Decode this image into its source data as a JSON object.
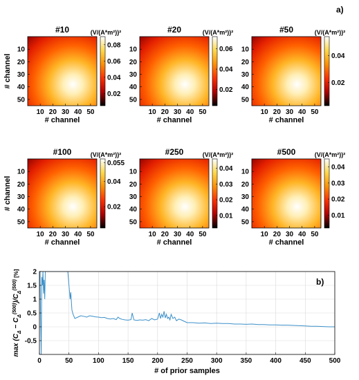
{
  "panel_a_label": "a)",
  "panel_b_label": "b)",
  "colormap": [
    "#000000",
    "#b00000",
    "#ff3000",
    "#ff9000",
    "#ffd84a",
    "#ffffff"
  ],
  "line_color": "#3a8fc9",
  "chart_data": [
    {
      "type": "heatmap",
      "title": "#10",
      "unit_label": "(V/(A*m²))²",
      "xlabel": "# channel",
      "ylabel": "# channel",
      "x_ticks": [
        10,
        20,
        30,
        40,
        50
      ],
      "y_ticks": [
        10,
        20,
        30,
        40,
        50
      ],
      "grid_size": 55,
      "peak_location": [
        36,
        38
      ],
      "colorbar_range": [
        0.005,
        0.09
      ],
      "colorbar_ticks": [
        0.02,
        0.04,
        0.06,
        0.08
      ]
    },
    {
      "type": "heatmap",
      "title": "#20",
      "unit_label": "(V/(A*m²))²",
      "xlabel": "# channel",
      "ylabel": "",
      "x_ticks": [
        10,
        20,
        30,
        40,
        50
      ],
      "y_ticks": [
        10,
        20,
        30,
        40,
        50
      ],
      "grid_size": 55,
      "peak_location": [
        36,
        38
      ],
      "colorbar_range": [
        0.004,
        0.072
      ],
      "colorbar_ticks": [
        0.02,
        0.04,
        0.06
      ]
    },
    {
      "type": "heatmap",
      "title": "#50",
      "unit_label": "(V/(A*m²))²",
      "xlabel": "# channel",
      "ylabel": "",
      "x_ticks": [
        10,
        20,
        30,
        40,
        50
      ],
      "y_ticks": [
        10,
        20,
        30,
        40,
        50
      ],
      "grid_size": 55,
      "peak_location": [
        36,
        38
      ],
      "colorbar_range": [
        0.003,
        0.054
      ],
      "colorbar_ticks": [
        0.02,
        0.04
      ]
    },
    {
      "type": "heatmap",
      "title": "#100",
      "unit_label": "(V/(A*m²))²",
      "xlabel": "# channel",
      "ylabel": "# channel",
      "x_ticks": [
        10,
        20,
        30,
        40,
        50
      ],
      "y_ticks": [
        10,
        20,
        30,
        40,
        50
      ],
      "grid_size": 55,
      "peak_location": [
        36,
        38
      ],
      "colorbar_range": [
        0.003,
        0.058
      ],
      "colorbar_ticks": [
        0.02,
        0.04,
        0.055
      ]
    },
    {
      "type": "heatmap",
      "title": "#250",
      "unit_label": "(V/(A*m²))²",
      "xlabel": "# channel",
      "ylabel": "",
      "x_ticks": [
        10,
        20,
        30,
        40,
        50
      ],
      "y_ticks": [
        10,
        20,
        30,
        40,
        50
      ],
      "grid_size": 55,
      "peak_location": [
        36,
        38
      ],
      "colorbar_range": [
        0.002,
        0.046
      ],
      "colorbar_ticks": [
        0.01,
        0.02,
        0.03,
        0.04
      ]
    },
    {
      "type": "heatmap",
      "title": "#500",
      "unit_label": "(V/(A*m²))²",
      "xlabel": "# channel",
      "ylabel": "",
      "x_ticks": [
        10,
        20,
        30,
        40,
        50
      ],
      "y_ticks": [
        10,
        20,
        30,
        40,
        50
      ],
      "grid_size": 55,
      "peak_location": [
        36,
        38
      ],
      "colorbar_range": [
        0.002,
        0.045
      ],
      "colorbar_ticks": [
        0.01,
        0.02,
        0.03,
        0.04
      ]
    },
    {
      "type": "line",
      "title": "",
      "xlabel": "# of prior samples",
      "ylabel_parts": {
        "prefix": "max (C",
        "sub1": "Δ",
        "mid": " − C",
        "sub2": "Δ",
        "sup2": "(500)",
        "slash": ")/C",
        "sub3": "Δ",
        "sup3": "(500)",
        "unit": "[%]"
      },
      "xlim": [
        0,
        500
      ],
      "ylim": [
        -1,
        2
      ],
      "x_ticks": [
        0,
        50,
        100,
        150,
        200,
        250,
        300,
        350,
        400,
        450,
        500
      ],
      "y_ticks": [
        -0.5,
        0,
        0.5,
        1,
        1.5,
        2
      ],
      "grid": true,
      "x": [
        1,
        2,
        3,
        4,
        5,
        6,
        7,
        8,
        9,
        10,
        12,
        48,
        50,
        52,
        53,
        55,
        57,
        60,
        65,
        70,
        75,
        80,
        85,
        90,
        95,
        100,
        105,
        110,
        115,
        120,
        125,
        130,
        133,
        136,
        140,
        145,
        150,
        155,
        157,
        160,
        165,
        170,
        175,
        180,
        185,
        190,
        195,
        200,
        203,
        205,
        207,
        209,
        211,
        213,
        215,
        217,
        219,
        221,
        223,
        226,
        229,
        232,
        236,
        240,
        245,
        250,
        260,
        270,
        280,
        290,
        300,
        310,
        320,
        330,
        340,
        350,
        360,
        370,
        380,
        390,
        400,
        410,
        420,
        430,
        440,
        450,
        460,
        470,
        480,
        490,
        500
      ],
      "y": [
        2.0,
        0.3,
        -1.0,
        1.8,
        1.5,
        2.0,
        1.2,
        1.7,
        1.0,
        2.0,
        2.0,
        2.0,
        1.5,
        1.0,
        1.25,
        0.6,
        0.45,
        0.3,
        0.35,
        0.4,
        0.38,
        0.35,
        0.4,
        0.38,
        0.36,
        0.35,
        0.33,
        0.34,
        0.3,
        0.28,
        0.3,
        0.26,
        0.35,
        0.3,
        0.27,
        0.25,
        0.24,
        0.26,
        0.5,
        0.25,
        0.23,
        0.25,
        0.24,
        0.26,
        0.22,
        0.3,
        0.25,
        0.28,
        0.5,
        0.3,
        0.45,
        0.35,
        0.56,
        0.32,
        0.45,
        0.3,
        0.35,
        0.25,
        0.45,
        0.3,
        0.35,
        0.22,
        0.28,
        0.25,
        0.2,
        0.15,
        0.15,
        0.13,
        0.14,
        0.12,
        0.13,
        0.12,
        0.12,
        0.1,
        0.1,
        0.09,
        0.1,
        0.08,
        0.08,
        0.07,
        0.07,
        0.06,
        0.06,
        0.05,
        0.04,
        0.03,
        0.02,
        0.02,
        0.01,
        0.0,
        0.0
      ]
    }
  ]
}
